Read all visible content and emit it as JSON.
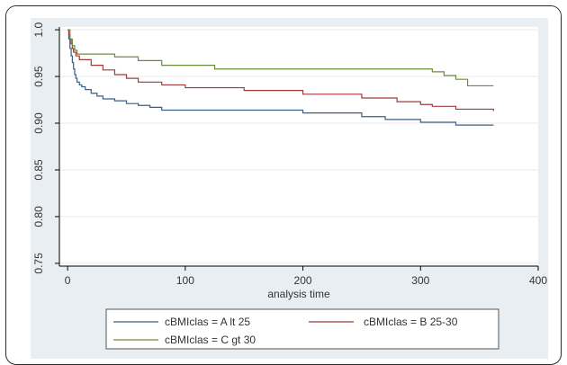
{
  "chart_data": {
    "type": "line",
    "title": "",
    "xlabel": "analysis time",
    "ylabel": "",
    "xlim": [
      -7,
      400
    ],
    "ylim": [
      0.747,
      1.003
    ],
    "xticks": [
      0,
      100,
      200,
      300,
      400
    ],
    "yticks": [
      1.0,
      0.95,
      0.9,
      0.85,
      0.8,
      0.75
    ],
    "xtick_labels": [
      "0",
      "100",
      "200",
      "300",
      "400"
    ],
    "ytick_labels": [
      "1.0",
      "0.95",
      "0.90",
      "0.85",
      "0.80",
      "0.75"
    ],
    "grid": true,
    "legend_position": "bottom",
    "series": [
      {
        "name": "cBMIclas = A lt 25",
        "color": "#3a5f86",
        "step": true,
        "x": [
          0,
          1,
          2,
          3,
          4,
          5,
          6,
          7,
          8,
          10,
          12,
          15,
          20,
          25,
          30,
          40,
          50,
          60,
          70,
          80,
          100,
          150,
          200,
          250,
          270,
          300,
          330,
          362
        ],
        "y": [
          1.0,
          0.99,
          0.98,
          0.972,
          0.965,
          0.958,
          0.952,
          0.948,
          0.944,
          0.941,
          0.939,
          0.936,
          0.932,
          0.929,
          0.926,
          0.924,
          0.921,
          0.919,
          0.917,
          0.914,
          0.914,
          0.914,
          0.911,
          0.907,
          0.904,
          0.901,
          0.898,
          0.898
        ]
      },
      {
        "name": "cBMIclas = B 25-30",
        "color": "#a23a3a",
        "step": true,
        "x": [
          0,
          1,
          2,
          3,
          4,
          5,
          7,
          10,
          20,
          30,
          40,
          50,
          60,
          80,
          100,
          150,
          200,
          250,
          280,
          300,
          310,
          330,
          362
        ],
        "y": [
          1.0,
          0.995,
          0.99,
          0.985,
          0.98,
          0.976,
          0.972,
          0.968,
          0.962,
          0.957,
          0.952,
          0.948,
          0.944,
          0.941,
          0.938,
          0.935,
          0.931,
          0.927,
          0.923,
          0.92,
          0.918,
          0.915,
          0.913
        ]
      },
      {
        "name": "cBMIclas = C gt 30",
        "color": "#6e8b3d",
        "step": true,
        "x": [
          0,
          2,
          4,
          6,
          8,
          40,
          60,
          80,
          125,
          310,
          320,
          330,
          340,
          362
        ],
        "y": [
          1.0,
          0.99,
          0.983,
          0.978,
          0.974,
          0.971,
          0.967,
          0.962,
          0.958,
          0.955,
          0.951,
          0.947,
          0.94,
          0.94
        ]
      }
    ]
  }
}
